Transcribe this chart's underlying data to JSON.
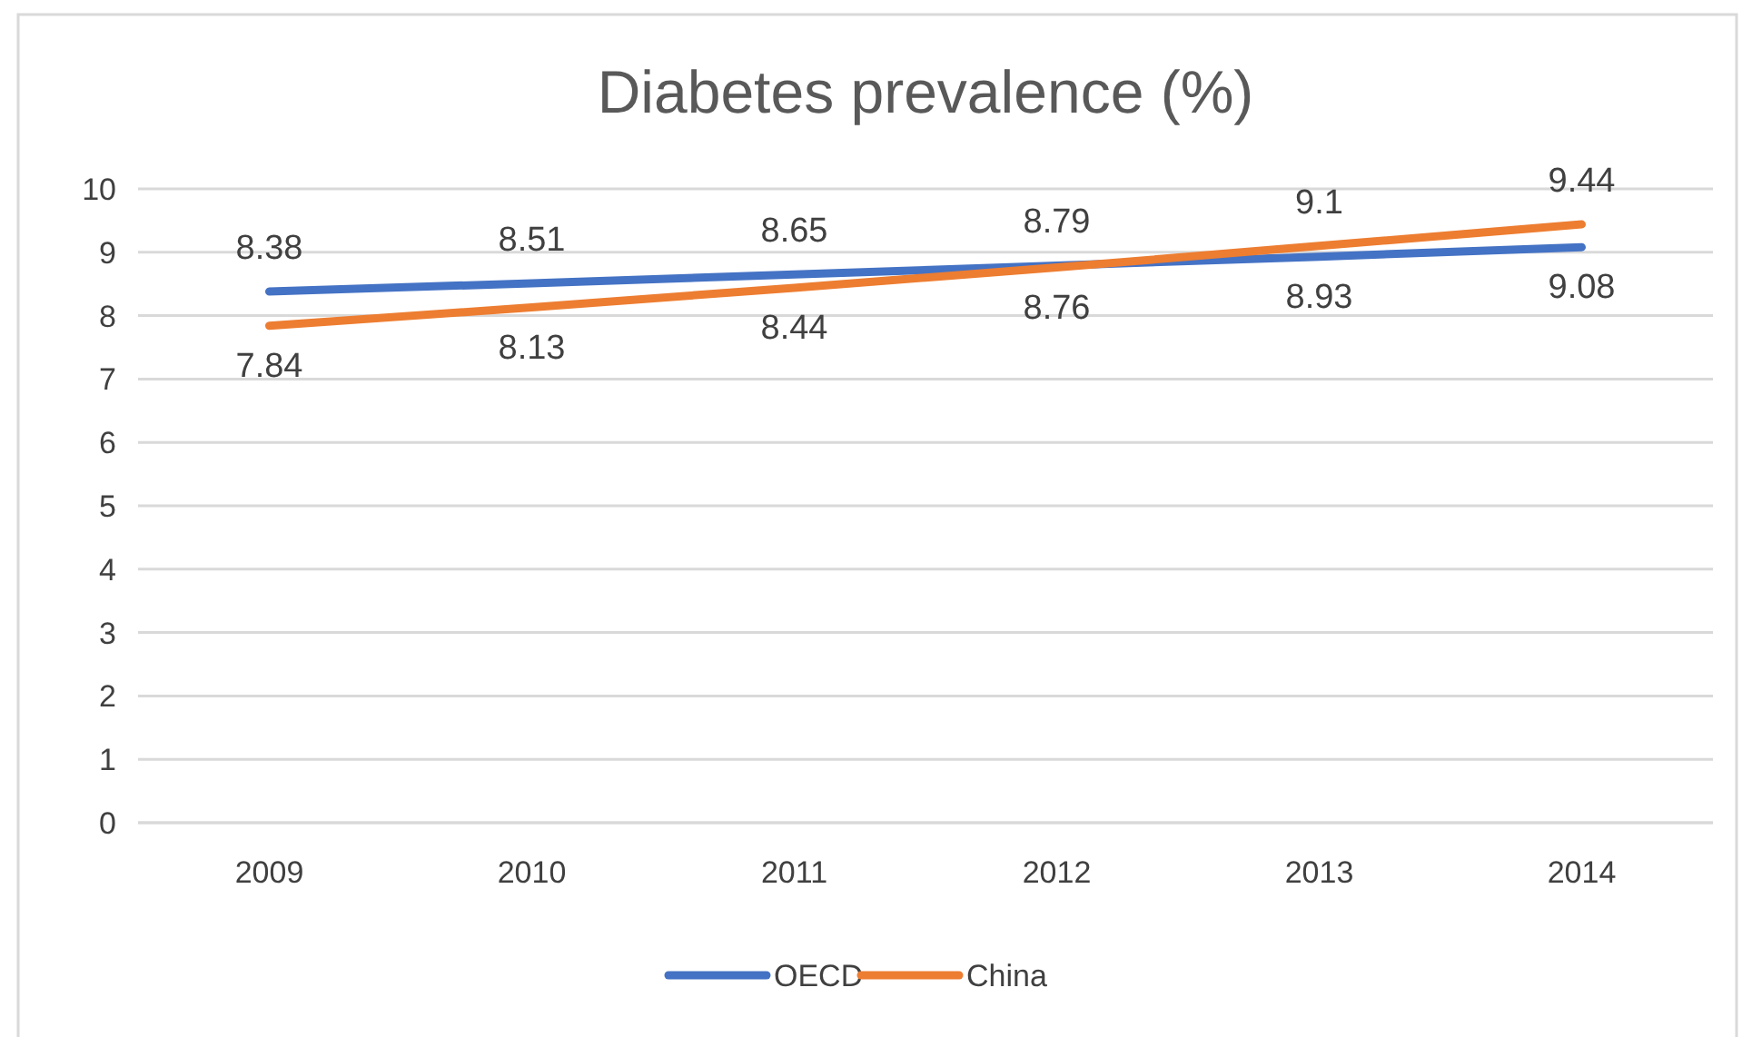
{
  "chart_data": {
    "type": "line",
    "title": "Diabetes prevalence (%)",
    "categories": [
      "2009",
      "2010",
      "2011",
      "2012",
      "2013",
      "2014"
    ],
    "series": [
      {
        "name": "OECD",
        "color": "#4472c4",
        "values": [
          8.38,
          8.51,
          8.65,
          8.79,
          8.93,
          9.08
        ]
      },
      {
        "name": "China",
        "color": "#ed7d31",
        "values": [
          7.84,
          8.13,
          8.44,
          8.76,
          9.1,
          9.44
        ]
      }
    ],
    "ylim": [
      0,
      10
    ],
    "yticks": [
      0,
      1,
      2,
      3,
      4,
      5,
      6,
      7,
      8,
      9,
      10
    ],
    "grid": "y",
    "legend": "bottom",
    "data_labels": true,
    "marker": "none",
    "line_style": "solid"
  }
}
